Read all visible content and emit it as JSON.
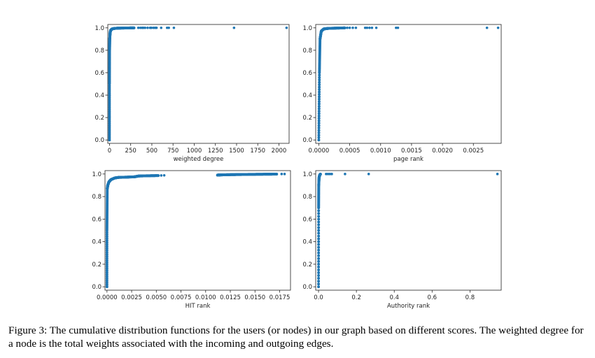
{
  "caption": "Figure 3: The cumulative distribution functions for the users (or nodes) in our graph based on different scores. The weighted degree for a node is the total weights associated with the incoming and outgoing edges.",
  "colors": {
    "marker": "#1f77b4",
    "axis": "#222222"
  },
  "chart_data": [
    {
      "type": "scatter",
      "xlabel": "weighted degree",
      "ylabel": "",
      "xlim": [
        -20,
        2120
      ],
      "ylim": [
        -0.03,
        1.03
      ],
      "xticks": [
        0,
        250,
        500,
        750,
        1000,
        1250,
        1500,
        1750,
        2000
      ],
      "xtick_labels": [
        "0",
        "250",
        "500",
        "750",
        "1000",
        "1250",
        "1500",
        "1750",
        "2000"
      ],
      "yticks": [
        0.0,
        0.2,
        0.4,
        0.6,
        0.8,
        1.0
      ],
      "ytick_labels": [
        "0.0",
        "0.2",
        "0.4",
        "0.6",
        "0.8",
        "1.0"
      ],
      "curve": [
        [
          0,
          0
        ],
        [
          0,
          0.5
        ],
        [
          1,
          0.8
        ],
        [
          3,
          0.9
        ],
        [
          8,
          0.96
        ],
        [
          15,
          0.98
        ],
        [
          30,
          0.99
        ],
        [
          60,
          0.995
        ],
        [
          100,
          0.997
        ],
        [
          200,
          0.999
        ],
        [
          290,
          0.9995
        ]
      ],
      "outliers": [
        [
          340,
          1
        ],
        [
          365,
          1
        ],
        [
          385,
          1
        ],
        [
          400,
          1
        ],
        [
          420,
          1
        ],
        [
          450,
          1
        ],
        [
          480,
          1
        ],
        [
          495,
          1
        ],
        [
          520,
          1
        ],
        [
          540,
          1
        ],
        [
          555,
          1
        ],
        [
          610,
          1
        ],
        [
          680,
          1
        ],
        [
          700,
          1
        ],
        [
          760,
          1
        ],
        [
          1470,
          1
        ],
        [
          2090,
          1
        ]
      ]
    },
    {
      "type": "scatter",
      "xlabel": "page rank",
      "ylabel": "",
      "xlim": [
        -5e-05,
        0.00295
      ],
      "ylim": [
        -0.03,
        1.03
      ],
      "xticks": [
        0.0,
        0.0005,
        0.001,
        0.0015,
        0.002,
        0.0025
      ],
      "xtick_labels": [
        "0.0000",
        "0.0005",
        "0.0010",
        "0.0015",
        "0.0020",
        "0.0025"
      ],
      "yticks": [
        0.0,
        0.2,
        0.4,
        0.6,
        0.8,
        1.0
      ],
      "ytick_labels": [
        "0.0",
        "0.2",
        "0.4",
        "0.6",
        "0.8",
        "1.0"
      ],
      "curve": [
        [
          0,
          0
        ],
        [
          1e-05,
          0.6
        ],
        [
          2e-05,
          0.9
        ],
        [
          4e-05,
          0.97
        ],
        [
          8e-05,
          0.99
        ],
        [
          0.00015,
          0.995
        ],
        [
          0.0003,
          0.998
        ],
        [
          0.00042,
          0.9995
        ]
      ],
      "outliers": [
        [
          0.00046,
          1
        ],
        [
          0.0005,
          1
        ],
        [
          0.00055,
          1
        ],
        [
          0.0006,
          1
        ],
        [
          0.00075,
          1
        ],
        [
          0.00078,
          1
        ],
        [
          0.00082,
          1
        ],
        [
          0.00086,
          1
        ],
        [
          0.00093,
          1
        ],
        [
          0.00125,
          1
        ],
        [
          0.00128,
          1
        ],
        [
          0.00272,
          1
        ],
        [
          0.0029,
          1
        ]
      ]
    },
    {
      "type": "scatter",
      "xlabel": "HIT rank",
      "ylabel": "",
      "xlim": [
        -0.0002,
        0.0186
      ],
      "ylim": [
        -0.03,
        1.03
      ],
      "xticks": [
        0.0,
        0.0025,
        0.005,
        0.0075,
        0.01,
        0.0125,
        0.015,
        0.0175
      ],
      "xtick_labels": [
        "0.0000",
        "0.0025",
        "0.0050",
        "0.0075",
        "0.0100",
        "0.0125",
        "0.0150",
        "0.0175"
      ],
      "yticks": [
        0.0,
        0.2,
        0.4,
        0.6,
        0.8,
        1.0
      ],
      "ytick_labels": [
        "0.0",
        "0.2",
        "0.4",
        "0.6",
        "0.8",
        "1.0"
      ],
      "curve": [
        [
          0,
          0
        ],
        [
          0,
          0.5
        ],
        [
          3e-05,
          0.87
        ],
        [
          8e-05,
          0.9
        ],
        [
          0.0002,
          0.93
        ],
        [
          0.0004,
          0.95
        ],
        [
          0.0008,
          0.965
        ],
        [
          0.0012,
          0.97
        ],
        [
          0.002,
          0.972
        ],
        [
          0.0028,
          0.975
        ],
        [
          0.0032,
          0.982
        ],
        [
          0.004,
          0.984
        ],
        [
          0.0052,
          0.986
        ]
      ],
      "cluster": [
        [
          0.0112,
          0.99
        ],
        [
          0.0115,
          0.992
        ],
        [
          0.0125,
          0.994
        ],
        [
          0.014,
          0.996
        ],
        [
          0.016,
          0.998
        ],
        [
          0.0172,
          0.999
        ]
      ],
      "outliers": [
        [
          0.0055,
          0.987
        ],
        [
          0.0058,
          0.988
        ],
        [
          0.0177,
          1
        ],
        [
          0.018,
          1
        ]
      ]
    },
    {
      "type": "scatter",
      "xlabel": "Authority rank",
      "ylabel": "",
      "xlim": [
        -0.015,
        0.965
      ],
      "ylim": [
        -0.03,
        1.03
      ],
      "xticks": [
        0.0,
        0.2,
        0.4,
        0.6,
        0.8
      ],
      "xtick_labels": [
        "0.0",
        "0.2",
        "0.4",
        "0.6",
        "0.8"
      ],
      "yticks": [
        0.0,
        0.2,
        0.4,
        0.6,
        0.8,
        1.0
      ],
      "ytick_labels": [
        "0.0",
        "0.2",
        "0.4",
        "0.6",
        "0.8",
        "1.0"
      ],
      "curve": [
        [
          0,
          0
        ],
        [
          0.0005,
          0.7
        ],
        [
          0.001,
          0.9
        ],
        [
          0.003,
          0.97
        ],
        [
          0.006,
          0.99
        ],
        [
          0.01,
          0.999
        ]
      ],
      "outliers": [
        [
          0.04,
          1
        ],
        [
          0.05,
          1
        ],
        [
          0.06,
          1
        ],
        [
          0.07,
          1
        ],
        [
          0.14,
          1
        ],
        [
          0.265,
          1
        ],
        [
          0.945,
          1
        ]
      ]
    }
  ]
}
